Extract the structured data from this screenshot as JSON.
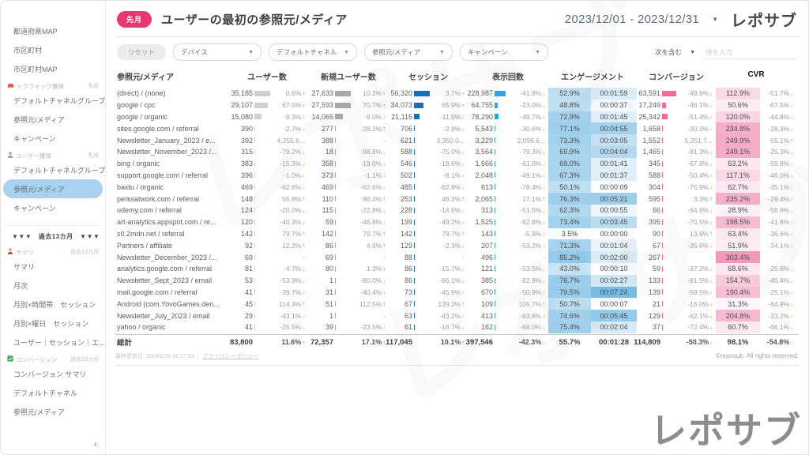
{
  "header": {
    "badge": "先月",
    "title": "ユーザーの最初の参照元/メディア",
    "date_range": "2023/12/01 - 2023/12/31",
    "logo": "レポサブ"
  },
  "filters": {
    "reset_label": "リセット",
    "dropdowns": [
      "デバイス",
      "デフォルトチャネル",
      "参照元/メディア",
      "キャンペーン"
    ],
    "condition_label": "次を含む",
    "input_placeholder": "値を入力"
  },
  "sidebar": {
    "collapse_icon": "‹",
    "items": [
      {
        "t": "item",
        "label": "都道府県MAP"
      },
      {
        "t": "item",
        "label": "市区町村"
      },
      {
        "t": "item",
        "label": "市区町村MAP"
      },
      {
        "t": "section",
        "icon": "car-icon",
        "label": "トラフィック獲得",
        "tag": "先月"
      },
      {
        "t": "item",
        "label": "デフォルトチャネルグループ"
      },
      {
        "t": "item",
        "label": "参照元/メディア"
      },
      {
        "t": "item",
        "label": "キャンペーン"
      },
      {
        "t": "section",
        "icon": "user-icon",
        "label": "ユーザー獲得",
        "tag": "先月"
      },
      {
        "t": "item",
        "label": "デフォルトチャネルグループ"
      },
      {
        "t": "item",
        "label": "参照元/メディア",
        "selected": true
      },
      {
        "t": "item",
        "label": "キャンペーン"
      },
      {
        "t": "divider"
      },
      {
        "t": "banner",
        "label": "▼▼▼　過去13カ月　▼▼▼"
      },
      {
        "t": "section",
        "icon": "person-icon",
        "label": "サマリ",
        "tag": "過去13カ月"
      },
      {
        "t": "item",
        "label": "サマリ"
      },
      {
        "t": "item",
        "label": "月次"
      },
      {
        "t": "item",
        "label": "月別×時間帯　セッション"
      },
      {
        "t": "item",
        "label": "月別×曜日　セッション"
      },
      {
        "t": "item",
        "label": "ユーザー｜セッション｜エ..."
      },
      {
        "t": "section",
        "icon": "check-icon",
        "label": "コンバージョン",
        "tag": "過去13カ月"
      },
      {
        "t": "item",
        "label": "コンバージョン サマリ"
      },
      {
        "t": "item",
        "label": "デフォルトチャネル"
      },
      {
        "t": "item",
        "label": "参照元/メディア"
      }
    ]
  },
  "table": {
    "columns": [
      "参照元/メディア",
      "ユーザー数",
      "新規ユーザー数",
      "セッション",
      "表示回数",
      "エンゲージメント",
      "コンバージョン",
      "CVR"
    ],
    "rows": [
      {
        "name": "(direct) / (none)",
        "u": "35,185",
        "uc": "0.6%",
        "ud": "u",
        "n": "27,633",
        "nc": "10.2%",
        "nd": "u",
        "s": "56,320",
        "sc": "3.7%",
        "sd": "u",
        "v": "228,987",
        "vc": "-41.8%",
        "vd": "d",
        "er": "52.9%",
        "et": "00:01:59",
        "c": "63,591",
        "cc": "-49.9%",
        "cd": "d",
        "cvr": "112.9%",
        "cvrc": "-51.7%",
        "cvrd": "d"
      },
      {
        "name": "google / cpc",
        "u": "29,107",
        "uc": "67.5%",
        "ud": "u",
        "n": "27,593",
        "nc": "70.7%",
        "nd": "u",
        "s": "34,073",
        "sc": "65.9%",
        "sd": "u",
        "v": "64,755",
        "vc": "-23.0%",
        "vd": "d",
        "er": "48.8%",
        "et": "00:00:37",
        "c": "17,249",
        "cc": "-46.1%",
        "cd": "d",
        "cvr": "50.6%",
        "cvrc": "-67.5%",
        "cvrd": "d"
      },
      {
        "name": "google / organic",
        "u": "15,080",
        "uc": "-9.3%",
        "ud": "d",
        "n": "14,065",
        "nc": "-9.0%",
        "nd": "d",
        "s": "21,115",
        "sc": "-11.9%",
        "sd": "d",
        "v": "78,290",
        "vc": "-49.7%",
        "vd": "d",
        "er": "72.9%",
        "et": "00:01:45",
        "c": "25,342",
        "cc": "-51.4%",
        "cd": "d",
        "cvr": "120.0%",
        "cvrc": "-44.8%",
        "cvrd": "d"
      },
      {
        "name": "sites.google.com / referral",
        "u": "390",
        "uc": "-2.7%",
        "ud": "d",
        "n": "277",
        "nc": "28.2%",
        "nd": "u",
        "s": "706",
        "sc": "-2.8%",
        "sd": "d",
        "v": "5,543",
        "vc": "-30.6%",
        "vd": "d",
        "er": "77.1%",
        "et": "00:04:55",
        "c": "1,658",
        "cc": "-30.3%",
        "cd": "d",
        "cvr": "234.8%",
        "cvrc": "-28.3%",
        "cvrd": "d"
      },
      {
        "name": "Newsletter_January_2023 / e...",
        "u": "392",
        "uc": "4,255.6...",
        "ud": "",
        "n": "388",
        "nc": "-",
        "nd": "",
        "s": "621",
        "sc": "3,350.0...",
        "sd": "",
        "v": "3,229",
        "vc": "2,096.6...",
        "vd": "",
        "er": "73.3%",
        "et": "00:03:05",
        "c": "1,552",
        "cc": "5,251.7...",
        "cd": "",
        "cvr": "249.9%",
        "cvrc": "55.1%",
        "cvrd": "u"
      },
      {
        "name": "Newsletter_November_2023 /...",
        "u": "315",
        "uc": "-79.2%",
        "ud": "d",
        "n": "18",
        "nc": "-98.8%",
        "nd": "d",
        "s": "588",
        "sc": "-75.0%",
        "sd": "d",
        "v": "3,564",
        "vc": "-79.3%",
        "vd": "d",
        "er": "69.9%",
        "et": "00:04:04",
        "c": "1,465",
        "cc": "-81.3%",
        "cd": "d",
        "cvr": "249.1%",
        "cvrc": "-25.3%",
        "cvrd": "d"
      },
      {
        "name": "bing / organic",
        "u": "383",
        "uc": "-15.3%",
        "ud": "d",
        "n": "358",
        "nc": "-19.0%",
        "nd": "d",
        "s": "546",
        "sc": "-19.6%",
        "sd": "d",
        "v": "1,666",
        "vc": "-61.0%",
        "vd": "d",
        "er": "69.0%",
        "et": "00:01:41",
        "c": "345",
        "cc": "-67.8%",
        "cd": "d",
        "cvr": "63.2%",
        "cvrc": "-59.9%",
        "cvrd": "d"
      },
      {
        "name": "support.google.com / referral",
        "u": "396",
        "uc": "-1.0%",
        "ud": "d",
        "n": "373",
        "nc": "-1.1%",
        "nd": "d",
        "s": "502",
        "sc": "-8.1%",
        "sd": "d",
        "v": "2,048",
        "vc": "-49.1%",
        "vd": "d",
        "er": "67.3%",
        "et": "00:01:37",
        "c": "588",
        "cc": "-50.4%",
        "cd": "d",
        "cvr": "117.1%",
        "cvrc": "-46.0%",
        "cvrd": "d"
      },
      {
        "name": "baidu / organic",
        "u": "469",
        "uc": "-62.6%",
        "ud": "d",
        "n": "469",
        "nc": "-62.6%",
        "nd": "d",
        "s": "485",
        "sc": "-62.8%",
        "sd": "d",
        "v": "613",
        "vc": "-78.4%",
        "vd": "d",
        "er": "50.1%",
        "et": "00:00:09",
        "c": "304",
        "cc": "-75.9%",
        "cd": "d",
        "cvr": "62.7%",
        "cvrc": "-35.1%",
        "cvrd": "d"
      },
      {
        "name": "perksatwork.com / referral",
        "u": "148",
        "uc": "55.8%",
        "ud": "u",
        "n": "110",
        "nc": "96.4%",
        "nd": "u",
        "s": "253",
        "sc": "46.2%",
        "sd": "u",
        "v": "2,065",
        "vc": "17.1%",
        "vd": "u",
        "er": "76.3%",
        "et": "00:05:21",
        "c": "595",
        "cc": "3.3%",
        "cd": "u",
        "cvr": "235.2%",
        "cvrc": "-29.4%",
        "cvrd": "d"
      },
      {
        "name": "udemy.com / referral",
        "u": "124",
        "uc": "-20.0%",
        "ud": "d",
        "n": "115",
        "nc": "-22.8%",
        "nd": "d",
        "s": "228",
        "sc": "-14.6%",
        "sd": "d",
        "v": "313",
        "vc": "-51.5%",
        "vd": "d",
        "er": "62.3%",
        "et": "00:00:55",
        "c": "66",
        "cc": "-64.9%",
        "cd": "d",
        "cvr": "28.9%",
        "cvrc": "-58.9%",
        "cvrd": "d"
      },
      {
        "name": "art-analytics.appspot.com / re...",
        "u": "120",
        "uc": "-40.3%",
        "ud": "d",
        "n": "59",
        "nc": "-46.8%",
        "nd": "d",
        "s": "199",
        "sc": "-49.2%",
        "sd": "d",
        "v": "1,525",
        "vc": "-62.8%",
        "vd": "d",
        "er": "73.4%",
        "et": "00:03:45",
        "c": "395",
        "cc": "-70.5%",
        "cd": "d",
        "cvr": "198.5%",
        "cvrc": "-41.8%",
        "cvrd": "d"
      },
      {
        "name": "s0.2mdn.net / referral",
        "u": "142",
        "uc": "79.7%",
        "ud": "u",
        "n": "142",
        "nc": "79.7%",
        "nd": "u",
        "s": "142",
        "sc": "79.7%",
        "sd": "u",
        "v": "143",
        "vc": "-5.9%",
        "vd": "d",
        "er": "3.5%",
        "et": "00:00:00",
        "c": "90",
        "cc": "13.9%",
        "cd": "u",
        "cvr": "63.4%",
        "cvrc": "-36.6%",
        "cvrd": "d"
      },
      {
        "name": "Partners / affiliate",
        "u": "92",
        "uc": "12.2%",
        "ud": "u",
        "n": "86",
        "nc": "4.9%",
        "nd": "u",
        "s": "129",
        "sc": "-2.3%",
        "sd": "d",
        "v": "207",
        "vc": "-53.2%",
        "vd": "d",
        "er": "71.3%",
        "et": "00:01:04",
        "c": "67",
        "cc": "-35.6%",
        "cd": "d",
        "cvr": "51.9%",
        "cvrc": "-34.1%",
        "cvrd": "d"
      },
      {
        "name": "Newsletter_December_2023 /...",
        "u": "69",
        "uc": "-",
        "ud": "",
        "n": "69",
        "nc": "-",
        "nd": "",
        "s": "88",
        "sc": "-",
        "sd": "",
        "v": "496",
        "vc": "-",
        "vd": "",
        "er": "85.2%",
        "et": "00:02:00",
        "c": "267",
        "cc": "-",
        "cd": "",
        "cvr": "303.4%",
        "cvrc": "-",
        "cvrd": ""
      },
      {
        "name": "analytics.google.com / referral",
        "u": "81",
        "uc": "-4.7%",
        "ud": "d",
        "n": "80",
        "nc": "1.3%",
        "nd": "u",
        "s": "86",
        "sc": "-15.7%",
        "sd": "d",
        "v": "121",
        "vc": "-53.5%",
        "vd": "d",
        "er": "43.0%",
        "et": "00:00:10",
        "c": "59",
        "cc": "-37.2%",
        "cd": "d",
        "cvr": "68.6%",
        "cvrc": "-25.6%",
        "cvrd": "d"
      },
      {
        "name": "Newsletter_Sept_2023 / email",
        "u": "53",
        "uc": "-53.9%",
        "ud": "d",
        "n": "1",
        "nc": "-80.0%",
        "nd": "d",
        "s": "86",
        "sc": "-66.1%",
        "sd": "d",
        "v": "385",
        "vc": "-82.9%",
        "vd": "d",
        "er": "76.7%",
        "et": "00:02:27",
        "c": "133",
        "cc": "-81.5%",
        "cd": "d",
        "cvr": "154.7%",
        "cvrc": "-45.4%",
        "cvrd": "d"
      },
      {
        "name": "mail.google.com / referral",
        "u": "41",
        "uc": "-39.7%",
        "ud": "d",
        "n": "31",
        "nc": "-40.4%",
        "nd": "d",
        "s": "73",
        "sc": "-45.9%",
        "sd": "d",
        "v": "670",
        "vc": "-50.9%",
        "vd": "d",
        "er": "79.5%",
        "et": "00:07:24",
        "c": "139",
        "cc": "-59.5%",
        "cd": "d",
        "cvr": "190.4%",
        "cvrc": "-25.1%",
        "cvrd": "d"
      },
      {
        "name": "Android (com.YovoGames.den...",
        "u": "45",
        "uc": "114.3%",
        "ud": "u",
        "n": "51",
        "nc": "112.5%",
        "nd": "u",
        "s": "67",
        "sc": "139.3%",
        "sd": "u",
        "v": "109",
        "vc": "105.7%",
        "vd": "u",
        "er": "50.7%",
        "et": "00:00:07",
        "c": "21",
        "cc": "-16.0%",
        "cd": "d",
        "cvr": "31.3%",
        "cvrc": "-64.9%",
        "cvrd": "d"
      },
      {
        "name": "Newsletter_July_2023 / email",
        "u": "29",
        "uc": "-43.1%",
        "ud": "d",
        "n": "1",
        "nc": "-",
        "nd": "",
        "s": "63",
        "sc": "-43.2%",
        "sd": "d",
        "v": "413",
        "vc": "-63.8%",
        "vd": "d",
        "er": "74.6%",
        "et": "00:05:45",
        "c": "129",
        "cc": "-62.1%",
        "cd": "d",
        "cvr": "204.8%",
        "cvrc": "-33.2%",
        "cvrd": "d"
      },
      {
        "name": "yahoo / organic",
        "u": "41",
        "uc": "-25.5%",
        "ud": "d",
        "n": "39",
        "nc": "-23.5%",
        "nd": "d",
        "s": "61",
        "sc": "-18.7%",
        "sd": "d",
        "v": "162",
        "vc": "-68.0%",
        "vd": "d",
        "er": "75.4%",
        "et": "00:02:04",
        "c": "37",
        "cc": "-72.4%",
        "cd": "d",
        "cvr": "60.7%",
        "cvrc": "-66.1%",
        "cvrd": "d"
      }
    ],
    "total": {
      "name": "総計",
      "u": "83,800",
      "uc": "11.6%",
      "ud": "u",
      "n": "72,357",
      "nc": "17.1%",
      "nd": "u",
      "s": "117,045",
      "sc": "10.1%",
      "sd": "u",
      "v": "397,546",
      "vc": "-42.3%",
      "vd": "d",
      "er": "55.7%",
      "et": "00:01:28",
      "c": "114,809",
      "cc": "-50.3%",
      "cd": "d",
      "cvr": "98.1%",
      "cvrc": "-54.8%",
      "cvrd": "d"
    }
  },
  "footer": {
    "updated": "最終更新日: 2024/1/26 16:17:53",
    "separator": "｜",
    "privacy_link": "プライバシー ポリシー",
    "copyright": "©reposub. All rights reserved."
  },
  "watermark": {
    "text": "レポサブ"
  },
  "colors": {
    "accent_pink": "#e8386d",
    "bar_users_gray": "#d0d0d0",
    "bar_new_gray": "#a8a8a8",
    "bar_sessions_blue": "#1a6fb5",
    "bar_views_blue": "#35a3dd",
    "bar_conv_pink": "#ef6b9e",
    "heat_blue": "62,160,218",
    "heat_pink": "233,78,135",
    "up_green": "#3da04c",
    "down_orange": "#f0931e",
    "selected_item_bg": "#aad1ed"
  }
}
